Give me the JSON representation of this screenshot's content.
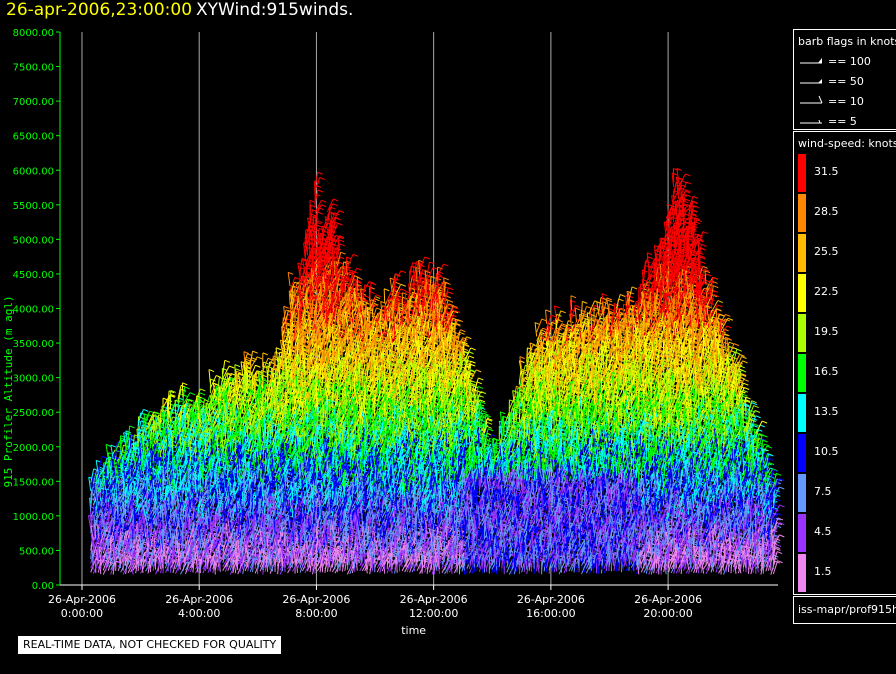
{
  "title": {
    "datetime": "26-apr-2006,23:00:00",
    "product": "XYWind:915winds."
  },
  "chart_data": {
    "type": "scatter",
    "xlabel": "time",
    "ylabel": "915 Profiler Altitude (m agl)",
    "ylim": [
      0,
      8000
    ],
    "yticks": [
      "0.00",
      "500.00",
      "1000.00",
      "1500.00",
      "2000.00",
      "2500.00",
      "3000.00",
      "3500.00",
      "4000.00",
      "4500.00",
      "5000.00",
      "5500.00",
      "6000.00",
      "6500.00",
      "7000.00",
      "7500.00",
      "8000.00"
    ],
    "xlim": [
      "26-Apr-2006 -0:45",
      "26-Apr-2006 23:45"
    ],
    "xticks": [
      {
        "date": "26-Apr-2006",
        "time": "0:00:00",
        "hour": 0
      },
      {
        "date": "26-Apr-2006",
        "time": "4:00:00",
        "hour": 4
      },
      {
        "date": "26-Apr-2006",
        "time": "8:00:00",
        "hour": 8
      },
      {
        "date": "26-Apr-2006",
        "time": "12:00:00",
        "hour": 12
      },
      {
        "date": "26-Apr-2006",
        "time": "16:00:00",
        "hour": 16
      },
      {
        "date": "26-Apr-2006",
        "time": "20:00:00",
        "hour": 20
      }
    ],
    "grid": "vertical at major ticks",
    "color_variable": "wind-speed (knots)",
    "approx_envelope": [
      {
        "hour": 0.5,
        "top": 1650
      },
      {
        "hour": 2.2,
        "top": 2550
      },
      {
        "hour": 3.5,
        "top": 2800
      },
      {
        "hour": 4.5,
        "top": 3000
      },
      {
        "hour": 5.5,
        "top": 3250
      },
      {
        "hour": 6.5,
        "top": 3300
      },
      {
        "hour": 8.0,
        "top": 5900
      },
      {
        "hour": 9.3,
        "top": 4400
      },
      {
        "hour": 10.5,
        "top": 4400
      },
      {
        "hour": 12.0,
        "top": 4800
      },
      {
        "hour": 14.0,
        "top": 2000
      },
      {
        "hour": 15.5,
        "top": 3850
      },
      {
        "hour": 17.5,
        "top": 4100
      },
      {
        "hour": 19.5,
        "top": 4700
      },
      {
        "hour": 20.3,
        "top": 6200
      },
      {
        "hour": 21.8,
        "top": 3900
      },
      {
        "hour": 23.5,
        "top": 1500
      }
    ]
  },
  "legend_barbs": {
    "title": "barb flags in knots",
    "items": [
      {
        "label": "== 100"
      },
      {
        "label": "== 50"
      },
      {
        "label": "== 10"
      },
      {
        "label": "== 5"
      }
    ]
  },
  "legend_speed": {
    "title": "wind-speed: knots",
    "items": [
      {
        "label": "31.5",
        "color": "#ff0000"
      },
      {
        "label": "28.5",
        "color": "#ff8800"
      },
      {
        "label": "25.5",
        "color": "#ffbb00"
      },
      {
        "label": "22.5",
        "color": "#ffff00"
      },
      {
        "label": "19.5",
        "color": "#aaff00"
      },
      {
        "label": "16.5",
        "color": "#00ff00"
      },
      {
        "label": "13.5",
        "color": "#00ffff"
      },
      {
        "label": "10.5",
        "color": "#0000ff"
      },
      {
        "label": "7.5",
        "color": "#6699ff"
      },
      {
        "label": "4.5",
        "color": "#9933ff"
      },
      {
        "label": "1.5",
        "color": "#ee88ee"
      }
    ]
  },
  "source": "iss-mapr/prof915h",
  "quality_note": "REAL-TIME DATA, NOT CHECKED FOR QUALITY",
  "colors": {
    "axis": "#00ff00",
    "title_date": "#ffff00",
    "background": "#000000"
  }
}
